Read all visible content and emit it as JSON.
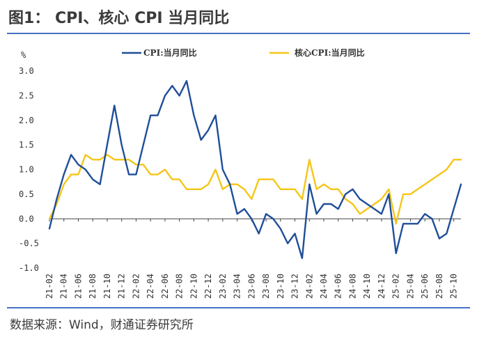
{
  "title": "图1： CPI、核心 CPI 当月同比",
  "source": "数据来源：Wind，财通证券研究所",
  "chart_data": {
    "type": "line",
    "ylabel": "%",
    "ylim": [
      -1.0,
      3.0
    ],
    "yticks": [
      "3.0",
      "2.5",
      "2.0",
      "1.5",
      "1.0",
      "0.5",
      "0.0",
      "-0.5",
      "-1.0"
    ],
    "xticklabels": [
      "21-02",
      "21-04",
      "21-06",
      "21-08",
      "21-10",
      "21-12",
      "22-02",
      "22-04",
      "22-06",
      "22-08",
      "22-10",
      "22-12",
      "23-02",
      "23-04",
      "23-06",
      "23-08",
      "23-10",
      "23-12",
      "24-02",
      "24-04",
      "24-06",
      "24-08",
      "24-10",
      "24-12",
      "25-02",
      "25-04",
      "25-06",
      "25-08",
      "25-10"
    ],
    "x": [
      "21-02",
      "21-03",
      "21-04",
      "21-05",
      "21-06",
      "21-07",
      "21-08",
      "21-09",
      "21-10",
      "21-11",
      "21-12",
      "22-01",
      "22-02",
      "22-03",
      "22-04",
      "22-05",
      "22-06",
      "22-07",
      "22-08",
      "22-09",
      "22-10",
      "22-11",
      "22-12",
      "23-01",
      "23-02",
      "23-03",
      "23-04",
      "23-05",
      "23-06",
      "23-07",
      "23-08",
      "23-09",
      "23-10",
      "23-11",
      "23-12",
      "24-01",
      "24-02",
      "24-03",
      "24-04",
      "24-05",
      "24-06",
      "24-07",
      "24-08",
      "24-09",
      "24-10",
      "24-11",
      "24-12",
      "25-01",
      "25-02",
      "25-03",
      "25-04",
      "25-05",
      "25-06",
      "25-07",
      "25-08",
      "25-09",
      "25-10",
      "25-11"
    ],
    "series": [
      {
        "name": "CPI:当月同比",
        "color": "#1f4e99",
        "values": [
          -0.2,
          0.4,
          0.9,
          1.3,
          1.1,
          1.0,
          0.8,
          0.7,
          1.5,
          2.3,
          1.5,
          0.9,
          0.9,
          1.5,
          2.1,
          2.1,
          2.5,
          2.7,
          2.5,
          2.8,
          2.1,
          1.6,
          1.8,
          2.1,
          1.0,
          0.7,
          0.1,
          0.2,
          0.0,
          -0.3,
          0.1,
          0.0,
          -0.2,
          -0.5,
          -0.3,
          -0.8,
          0.7,
          0.1,
          0.3,
          0.3,
          0.2,
          0.5,
          0.6,
          0.4,
          0.3,
          0.2,
          0.1,
          0.5,
          -0.7,
          -0.1,
          -0.1,
          -0.1,
          0.1,
          0.0,
          -0.4,
          -0.3,
          0.2,
          0.7
        ]
      },
      {
        "name": "核心CPI:当月同比",
        "color": "#f5c518",
        "values": [
          0.0,
          0.3,
          0.7,
          0.9,
          0.9,
          1.3,
          1.2,
          1.2,
          1.3,
          1.2,
          1.2,
          1.2,
          1.1,
          1.1,
          0.9,
          0.9,
          1.0,
          0.8,
          0.8,
          0.6,
          0.6,
          0.6,
          0.7,
          1.0,
          0.6,
          0.7,
          0.7,
          0.6,
          0.4,
          0.8,
          0.8,
          0.8,
          0.6,
          0.6,
          0.6,
          0.4,
          1.2,
          0.6,
          0.7,
          0.6,
          0.6,
          0.4,
          0.3,
          0.1,
          0.2,
          0.3,
          0.4,
          0.6,
          -0.1,
          0.5,
          0.5,
          0.6,
          0.7,
          0.8,
          0.9,
          1.0,
          1.2,
          1.2
        ]
      }
    ]
  }
}
